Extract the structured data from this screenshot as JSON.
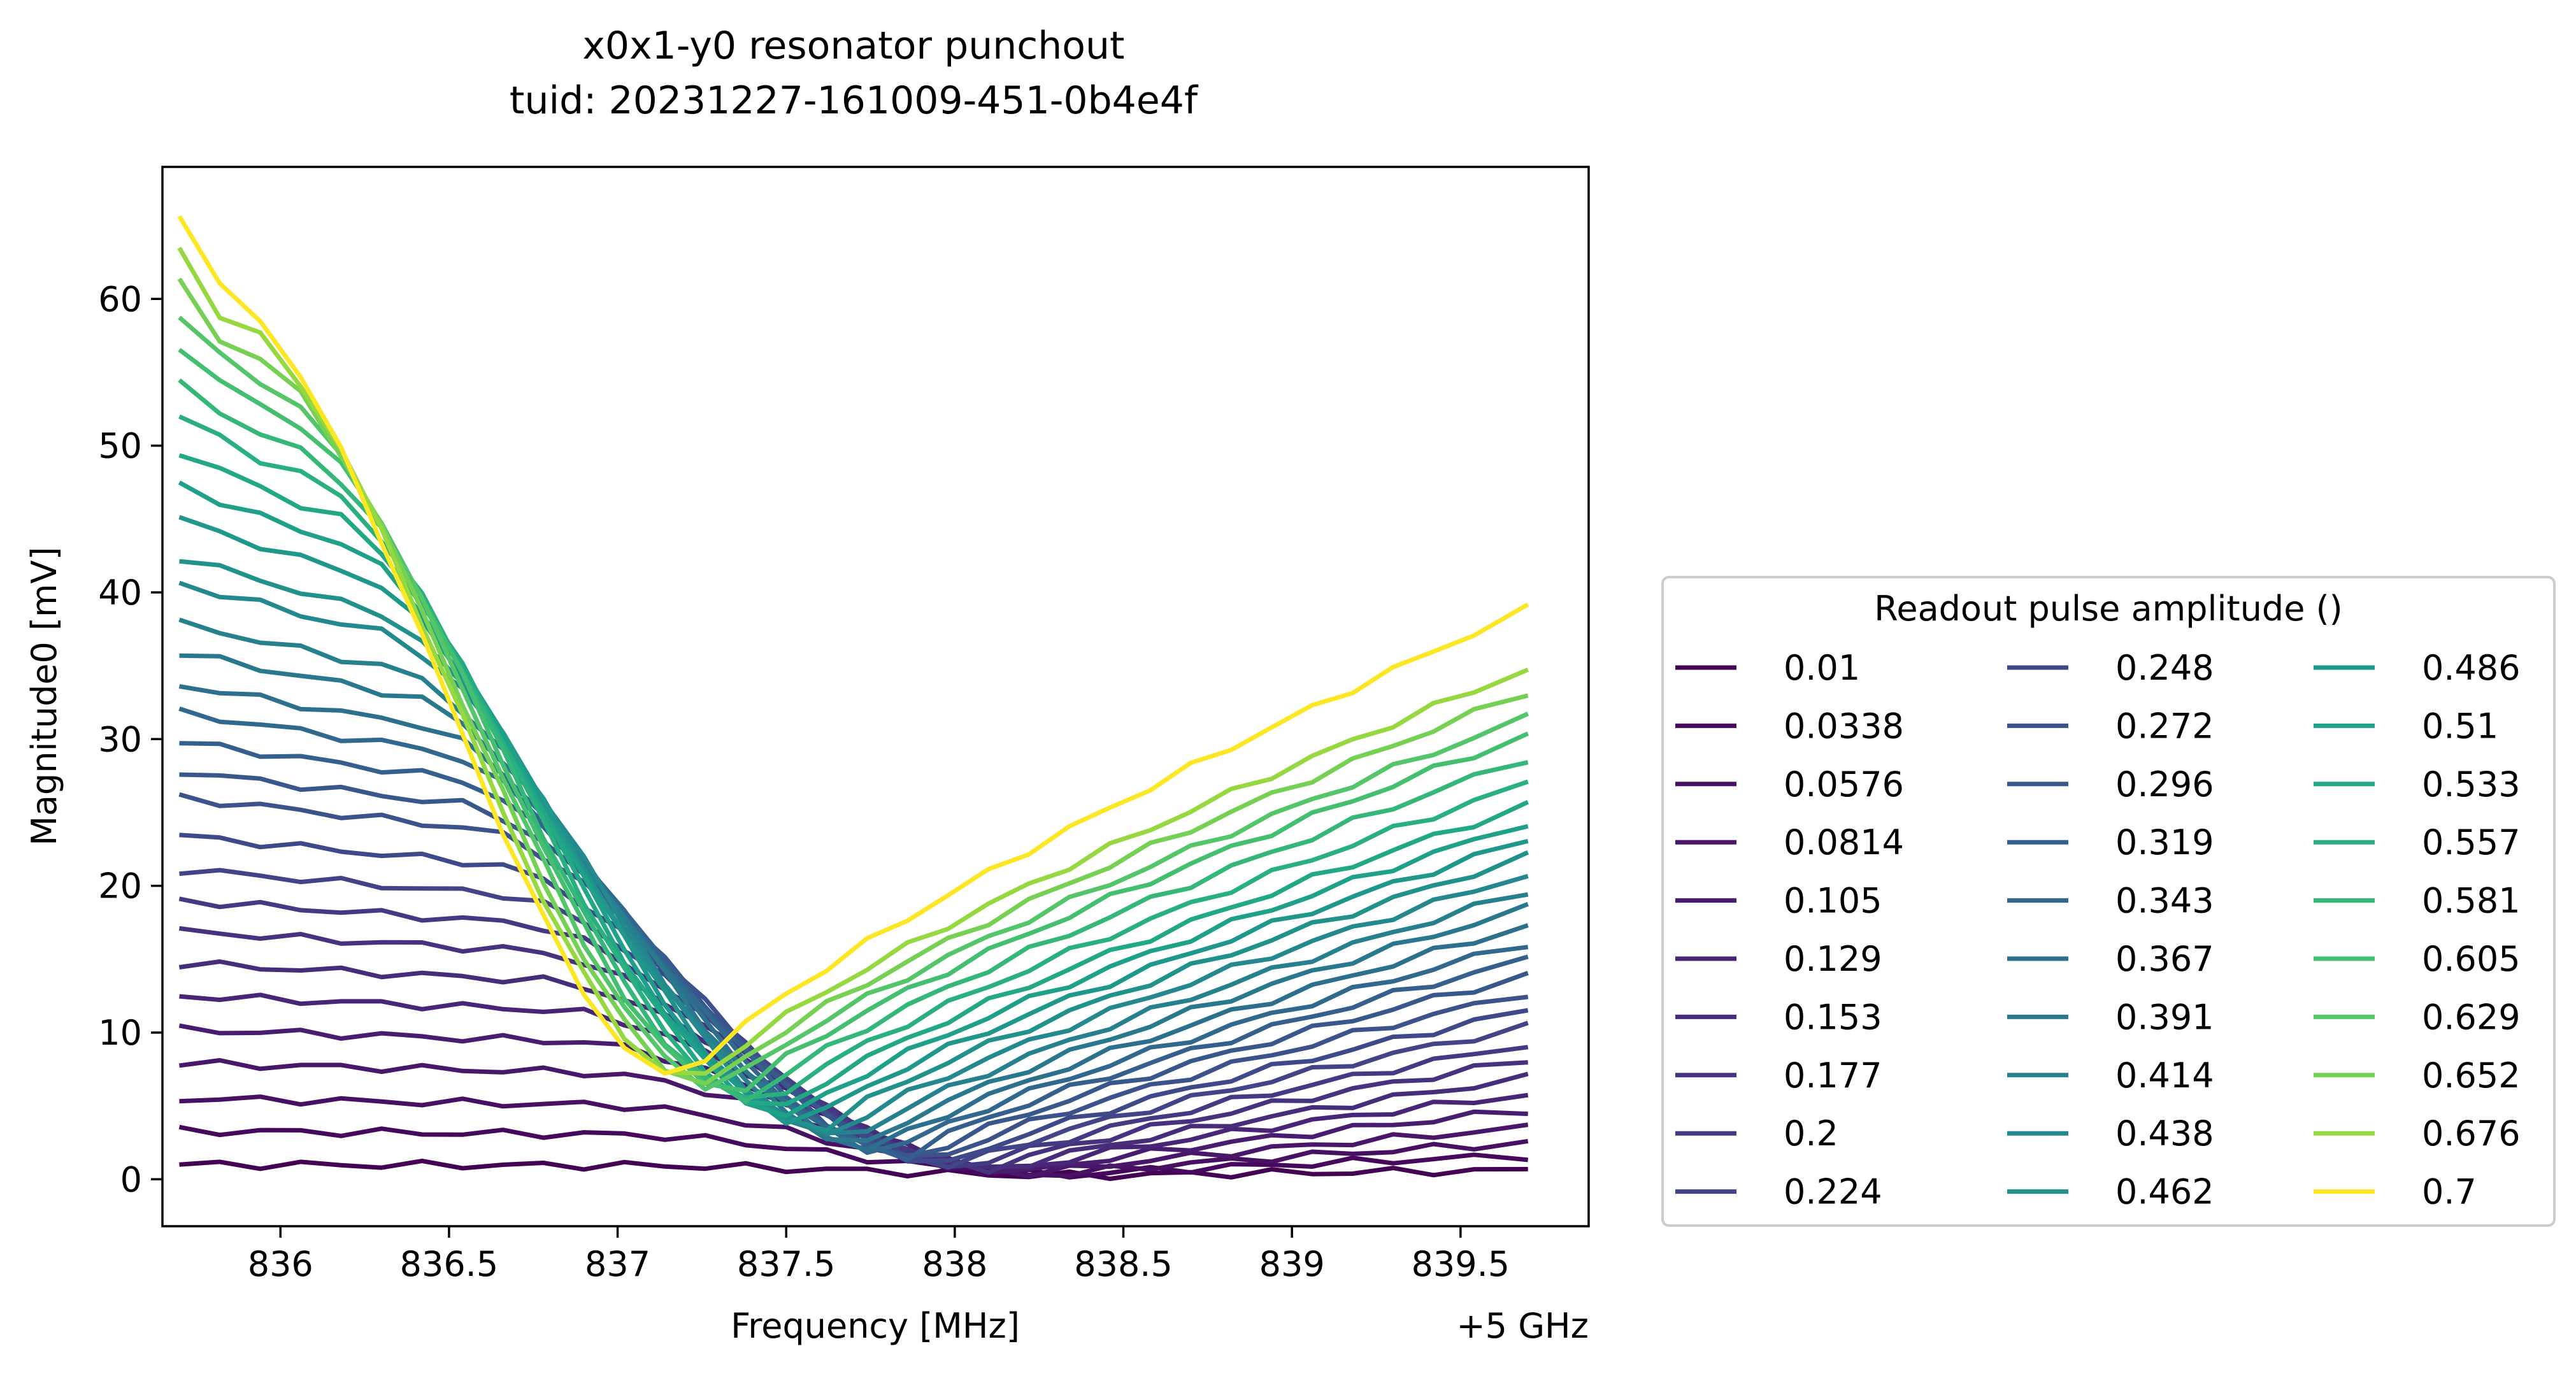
{
  "chart_data": {
    "type": "line",
    "title_line1": "x0x1-y0 resonator punchout",
    "title_line2": "tuid: 20231227-161009-451-0b4e4f",
    "xlabel": "Frequency [MHz]",
    "ylabel": "Magnitude0 [mV]",
    "x_offset_label": "+5 GHz",
    "xlim": [
      835.65,
      839.88
    ],
    "ylim": [
      -3.2,
      69.0
    ],
    "xticks": [
      836,
      836.5,
      837,
      837.5,
      838,
      838.5,
      839,
      839.5
    ],
    "xtick_labels": [
      "836",
      "836.5",
      "837",
      "837.5",
      "838",
      "838.5",
      "839",
      "839.5"
    ],
    "yticks": [
      0,
      10,
      20,
      30,
      40,
      50,
      60
    ],
    "ytick_labels": [
      "0",
      "10",
      "20",
      "30",
      "40",
      "50",
      "60"
    ],
    "grid": false,
    "colormap": "viridis",
    "x": [
      835.7,
      835.82,
      835.94,
      836.06,
      836.18,
      836.3,
      836.42,
      836.54,
      836.66,
      836.78,
      836.9,
      837.02,
      837.14,
      837.26,
      837.38,
      837.5,
      837.62,
      837.74,
      837.86,
      837.98,
      838.1,
      838.22,
      838.34,
      838.46,
      838.58,
      838.7,
      838.82,
      838.94,
      839.06,
      839.18,
      839.3,
      839.42,
      839.54,
      839.7
    ],
    "legend": {
      "title": "Readout pulse amplitude ()",
      "placement": "lower-right outside",
      "columns": 3
    },
    "series": [
      {
        "name": "0.01",
        "color": "#440154",
        "start": 1.0,
        "min": 0.25,
        "end": 0.6
      },
      {
        "name": "0.0338",
        "color": "#46085c",
        "start": 3.3,
        "min": 0.3,
        "end": 1.6
      },
      {
        "name": "0.0576",
        "color": "#471063",
        "start": 5.5,
        "min": 0.3,
        "end": 2.5
      },
      {
        "name": "0.0814",
        "color": "#481769",
        "start": 7.9,
        "min": 0.4,
        "end": 3.5
      },
      {
        "name": "0.105",
        "color": "#481d6f",
        "start": 10.2,
        "min": 0.5,
        "end": 4.7
      },
      {
        "name": "0.129",
        "color": "#482576",
        "start": 12.5,
        "min": 0.6,
        "end": 5.8
      },
      {
        "name": "0.153",
        "color": "#472c7a",
        "start": 14.7,
        "min": 0.6,
        "end": 6.9
      },
      {
        "name": "0.177",
        "color": "#46327e",
        "start": 16.9,
        "min": 0.7,
        "end": 8.1
      },
      {
        "name": "0.2",
        "color": "#443983",
        "start": 19.0,
        "min": 0.8,
        "end": 9.2
      },
      {
        "name": "0.224",
        "color": "#414487",
        "start": 21.1,
        "min": 0.9,
        "end": 10.4
      },
      {
        "name": "0.248",
        "color": "#3e4989",
        "start": 23.4,
        "min": 1.0,
        "end": 11.5
      },
      {
        "name": "0.272",
        "color": "#3b528b",
        "start": 26.0,
        "min": 1.2,
        "end": 12.7
      },
      {
        "name": "0.296",
        "color": "#38588c",
        "start": 27.8,
        "min": 1.4,
        "end": 13.9
      },
      {
        "name": "0.319",
        "color": "#355f8d",
        "start": 29.8,
        "min": 1.6,
        "end": 15.0
      },
      {
        "name": "0.343",
        "color": "#31688e",
        "start": 31.8,
        "min": 1.8,
        "end": 16.1
      },
      {
        "name": "0.367",
        "color": "#2d708e",
        "start": 33.7,
        "min": 2.0,
        "end": 17.3
      },
      {
        "name": "0.391",
        "color": "#2a788e",
        "start": 35.9,
        "min": 2.3,
        "end": 18.5
      },
      {
        "name": "0.414",
        "color": "#27808e",
        "start": 37.9,
        "min": 2.6,
        "end": 19.6
      },
      {
        "name": "0.438",
        "color": "#23898e",
        "start": 40.6,
        "min": 3.0,
        "end": 20.8
      },
      {
        "name": "0.462",
        "color": "#21918c",
        "start": 42.4,
        "min": 3.4,
        "end": 22.0
      },
      {
        "name": "0.486",
        "color": "#1f988b",
        "start": 45.0,
        "min": 3.8,
        "end": 23.1
      },
      {
        "name": "0.51",
        "color": "#1fa088",
        "start": 47.3,
        "min": 4.2,
        "end": 24.3
      },
      {
        "name": "0.533",
        "color": "#22a884",
        "start": 49.6,
        "min": 4.6,
        "end": 25.5
      },
      {
        "name": "0.557",
        "color": "#2ab07f",
        "start": 52.0,
        "min": 5.0,
        "end": 27.0
      },
      {
        "name": "0.581",
        "color": "#35b779",
        "start": 54.2,
        "min": 5.4,
        "end": 28.7
      },
      {
        "name": "0.605",
        "color": "#44bf70",
        "start": 56.7,
        "min": 5.8,
        "end": 30.3
      },
      {
        "name": "0.629",
        "color": "#54c568",
        "start": 58.9,
        "min": 6.1,
        "end": 31.5
      },
      {
        "name": "0.652",
        "color": "#75d054",
        "start": 61.1,
        "min": 6.3,
        "end": 33.2
      },
      {
        "name": "0.676",
        "color": "#95d840",
        "start": 63.5,
        "min": 6.5,
        "end": 34.8
      },
      {
        "name": "0.7",
        "color": "#fde725",
        "start": 65.9,
        "min": 6.7,
        "end": 38.9
      }
    ]
  }
}
